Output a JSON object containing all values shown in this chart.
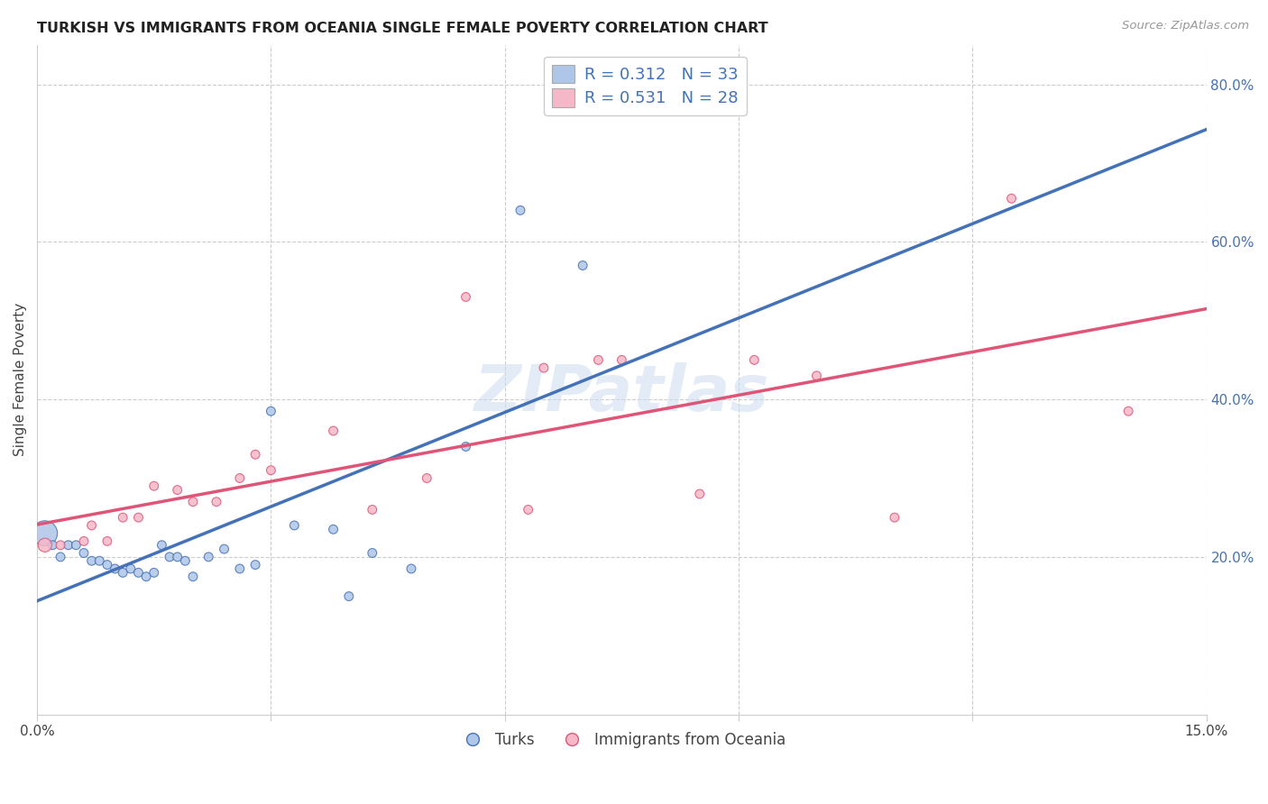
{
  "title": "TURKISH VS IMMIGRANTS FROM OCEANIA SINGLE FEMALE POVERTY CORRELATION CHART",
  "source": "Source: ZipAtlas.com",
  "ylabel": "Single Female Poverty",
  "xlim": [
    0.0,
    0.15
  ],
  "ylim": [
    0.0,
    0.85
  ],
  "xticks": [
    0.0,
    0.03,
    0.06,
    0.09,
    0.12,
    0.15
  ],
  "xticklabels": [
    "0.0%",
    "",
    "",
    "",
    "",
    "15.0%"
  ],
  "yticks_right": [
    0.2,
    0.4,
    0.6,
    0.8
  ],
  "yticklabels_right": [
    "20.0%",
    "40.0%",
    "60.0%",
    "80.0%"
  ],
  "grid_yticks": [
    0.2,
    0.4,
    0.6,
    0.8
  ],
  "grid_xticks": [
    0.03,
    0.06,
    0.09,
    0.12,
    0.15
  ],
  "legend1_label": "R = 0.312   N = 33",
  "legend2_label": "R = 0.531   N = 28",
  "series1_color": "#aec6e8",
  "series2_color": "#f5b8c8",
  "line1_color": "#4472b8",
  "line2_color": "#e05577",
  "watermark": "ZIPatlas",
  "turks_x": [
    0.001,
    0.002,
    0.003,
    0.004,
    0.005,
    0.006,
    0.007,
    0.008,
    0.009,
    0.01,
    0.011,
    0.012,
    0.013,
    0.014,
    0.015,
    0.016,
    0.017,
    0.018,
    0.019,
    0.02,
    0.022,
    0.024,
    0.026,
    0.028,
    0.03,
    0.033,
    0.038,
    0.04,
    0.043,
    0.048,
    0.055,
    0.062,
    0.07
  ],
  "turks_y": [
    0.23,
    0.215,
    0.2,
    0.215,
    0.215,
    0.205,
    0.195,
    0.195,
    0.19,
    0.185,
    0.18,
    0.185,
    0.18,
    0.175,
    0.18,
    0.215,
    0.2,
    0.2,
    0.195,
    0.175,
    0.2,
    0.21,
    0.185,
    0.19,
    0.385,
    0.24,
    0.235,
    0.15,
    0.205,
    0.185,
    0.34,
    0.64,
    0.57
  ],
  "turks_size": [
    400,
    50,
    50,
    50,
    50,
    50,
    50,
    50,
    50,
    50,
    50,
    50,
    50,
    50,
    50,
    50,
    50,
    50,
    50,
    50,
    50,
    50,
    50,
    50,
    50,
    50,
    50,
    50,
    50,
    50,
    50,
    50,
    50
  ],
  "oceania_x": [
    0.001,
    0.003,
    0.006,
    0.007,
    0.009,
    0.011,
    0.013,
    0.015,
    0.018,
    0.02,
    0.023,
    0.026,
    0.028,
    0.03,
    0.038,
    0.043,
    0.05,
    0.055,
    0.063,
    0.065,
    0.072,
    0.075,
    0.085,
    0.092,
    0.1,
    0.11,
    0.125,
    0.14
  ],
  "oceania_y": [
    0.215,
    0.215,
    0.22,
    0.24,
    0.22,
    0.25,
    0.25,
    0.29,
    0.285,
    0.27,
    0.27,
    0.3,
    0.33,
    0.31,
    0.36,
    0.26,
    0.3,
    0.53,
    0.26,
    0.44,
    0.45,
    0.45,
    0.28,
    0.45,
    0.43,
    0.25,
    0.655,
    0.385
  ],
  "oceania_size": [
    120,
    50,
    50,
    50,
    50,
    50,
    50,
    50,
    50,
    50,
    50,
    50,
    50,
    50,
    50,
    50,
    50,
    50,
    50,
    50,
    50,
    50,
    50,
    50,
    50,
    50,
    50,
    50
  ]
}
